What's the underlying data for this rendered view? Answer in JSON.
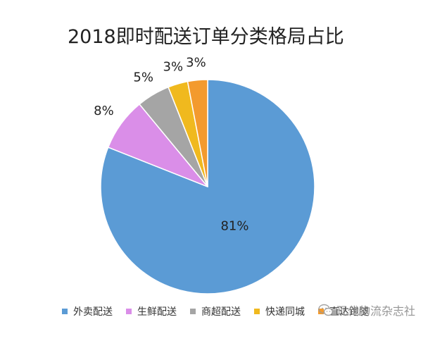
{
  "chart_data": {
    "type": "pie",
    "title": "2018即时配送订单分类格局占比",
    "slices": [
      {
        "name": "外卖配送",
        "value": 81,
        "label": "81%",
        "color": "#5b9bd5"
      },
      {
        "name": "生鲜配送",
        "value": 8,
        "label": "8%",
        "color": "#da8ee8"
      },
      {
        "name": "商超配送",
        "value": 5,
        "label": "5%",
        "color": "#a5a5a5"
      },
      {
        "name": "快递同城",
        "value": 3,
        "label": "3%",
        "color": "#f0b91e"
      },
      {
        "name": "直达跑腿",
        "value": 3,
        "label": "3%",
        "color": "#f39a2e"
      }
    ],
    "legend_position": "bottom"
  },
  "watermark": {
    "text": "现代物流杂志社",
    "icon": "wechat-icon"
  }
}
